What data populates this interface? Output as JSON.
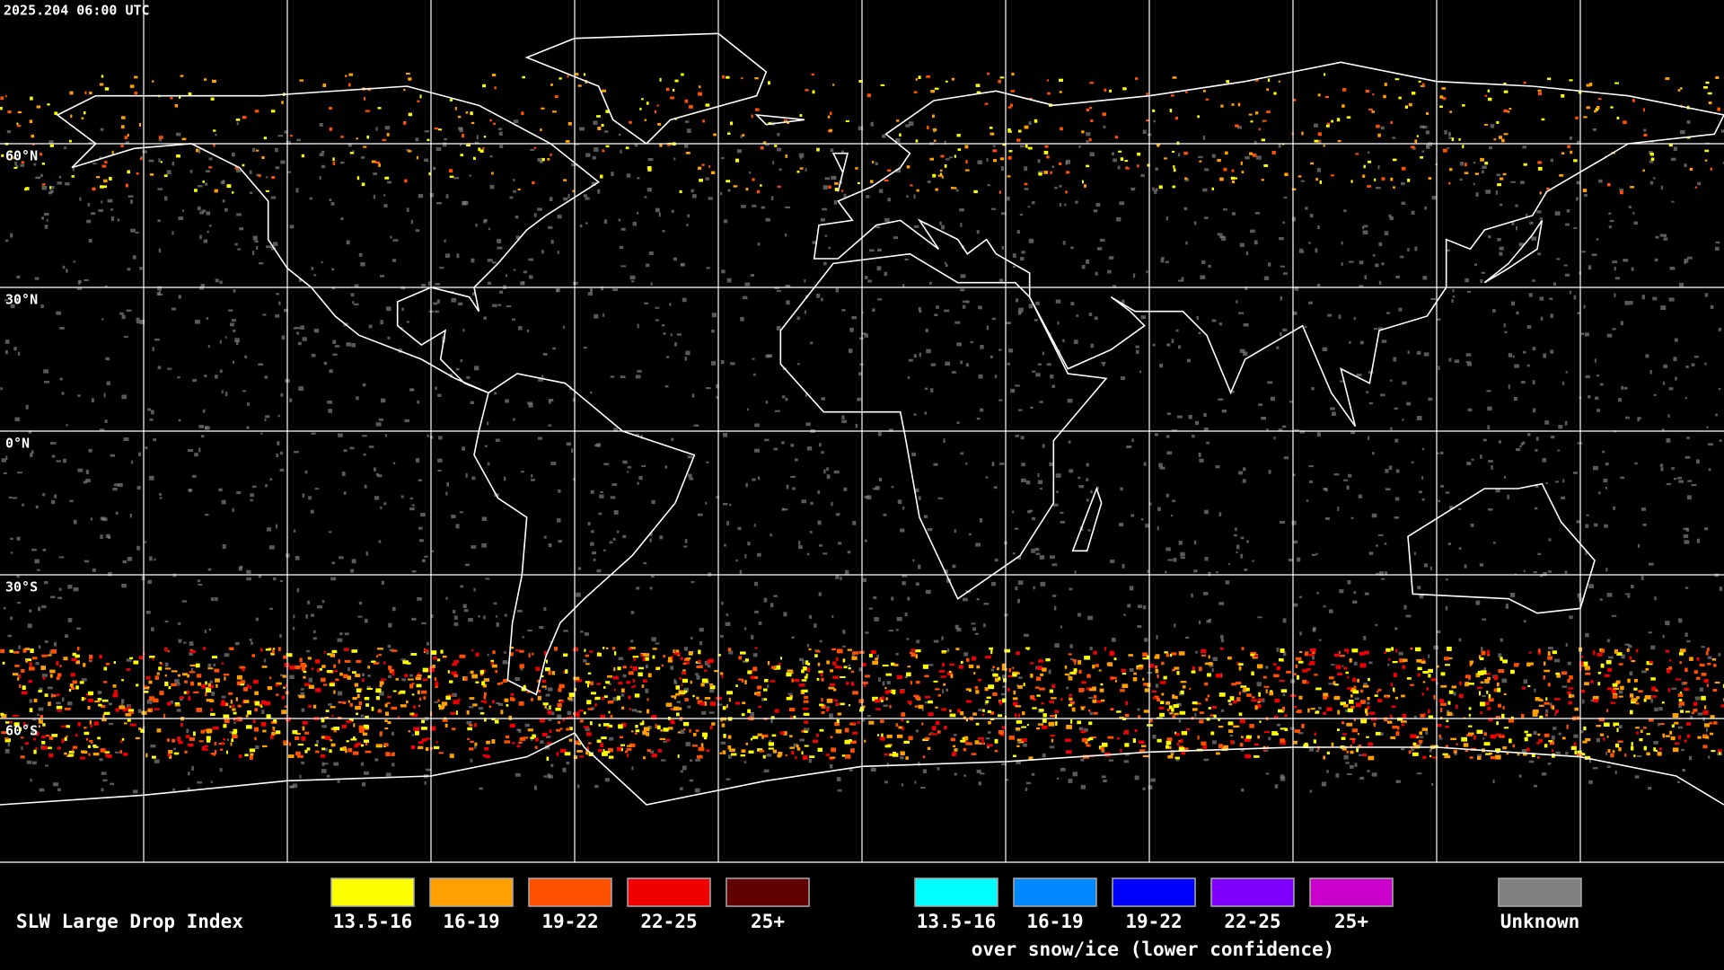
{
  "timestamp": "2025.204 06:00 UTC",
  "latitude_labels": [
    "60°N",
    "30°N",
    "0°N",
    "30°S",
    "60°S"
  ],
  "legend": {
    "title": "SLW Large Drop Index",
    "items": [
      {
        "label": "13.5-16",
        "color": "#ffff00"
      },
      {
        "label": "16-19",
        "color": "#ffa000"
      },
      {
        "label": "19-22",
        "color": "#ff5000"
      },
      {
        "label": "22-25",
        "color": "#f00000"
      },
      {
        "label": "25+",
        "color": "#600000"
      }
    ],
    "snow_ice_items": [
      {
        "label": "13.5-16",
        "color": "#00ffff"
      },
      {
        "label": "16-19",
        "color": "#0088ff"
      },
      {
        "label": "19-22",
        "color": "#0000ff"
      },
      {
        "label": "22-25",
        "color": "#8000ff"
      },
      {
        "label": "25+",
        "color": "#cc00cc"
      }
    ],
    "snow_ice_caption": "over snow/ice (lower confidence)",
    "unknown": {
      "label": "Unknown",
      "color": "#808080"
    }
  }
}
